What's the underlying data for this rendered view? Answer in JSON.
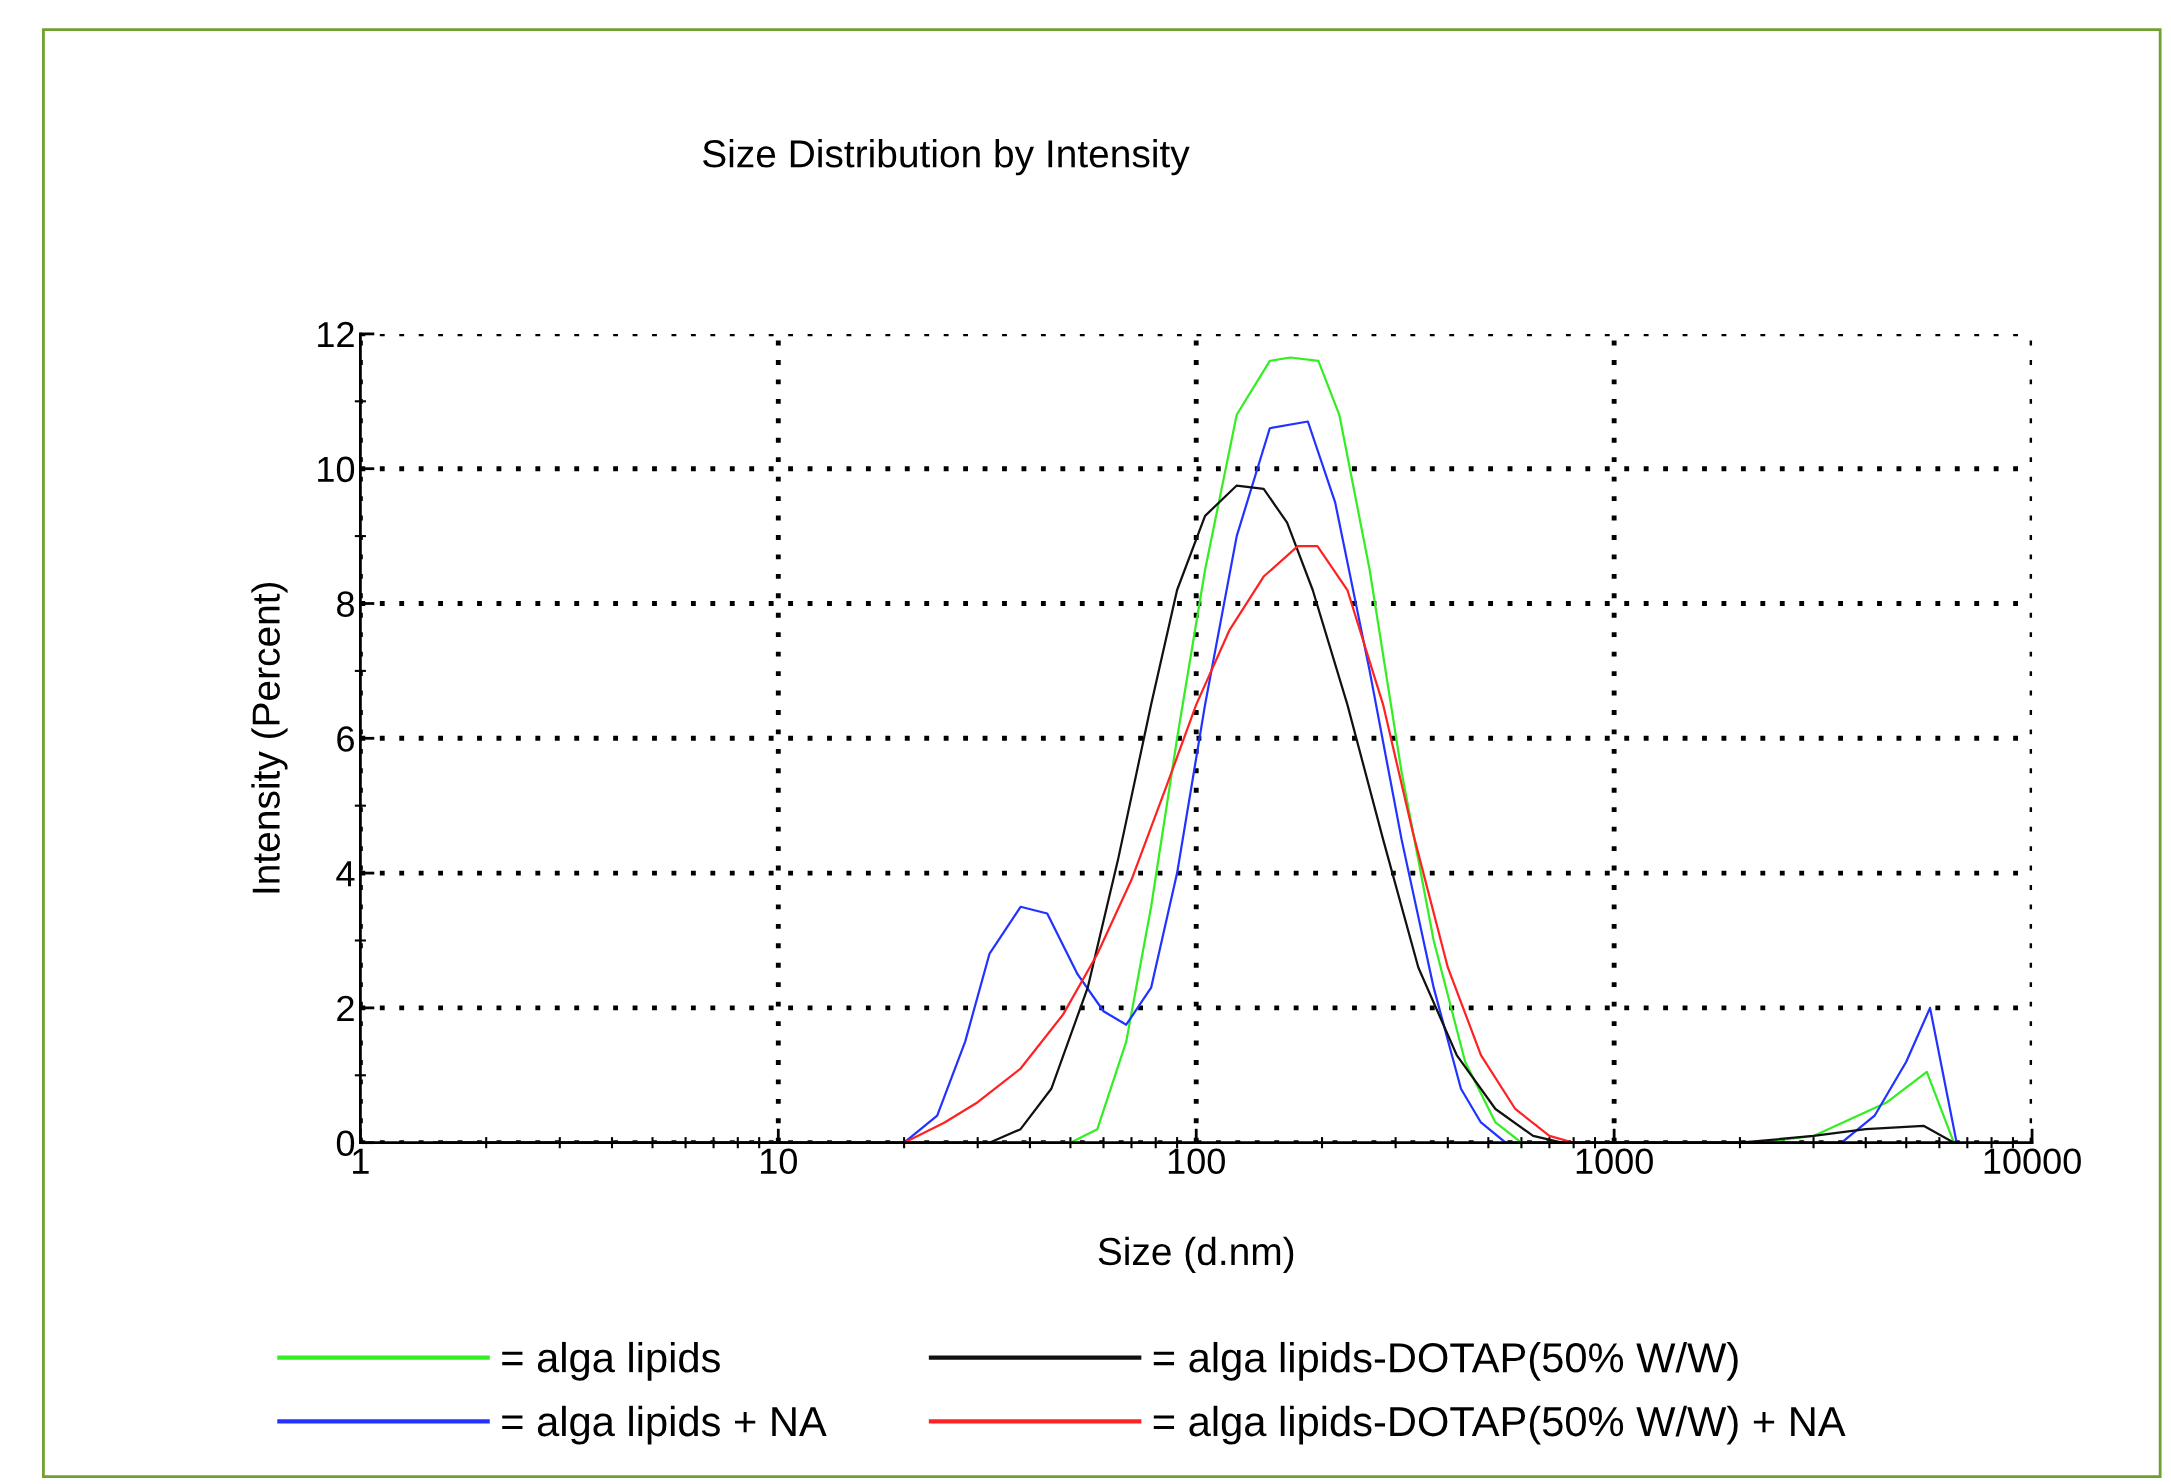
{
  "chart_data": {
    "type": "line",
    "title": "Size Distribution by Intensity",
    "xlabel": "Size (d.nm)",
    "ylabel": "Intensity (Percent)",
    "log": "x",
    "xlim": [
      1,
      10000
    ],
    "xticks": [
      1,
      10,
      100,
      1000,
      10000
    ],
    "ylim": [
      0,
      12
    ],
    "yticks": [
      0,
      2,
      4,
      6,
      8,
      10,
      12
    ],
    "grid": true,
    "legend": "bottom",
    "marker": "none",
    "line_style": "solid",
    "series": [
      {
        "name": "= alga lipids",
        "color": "#33ee22",
        "x": [
          1.5,
          50,
          58,
          68,
          78,
          90,
          105,
          125,
          150,
          168,
          196,
          220,
          260,
          310,
          370,
          440,
          520,
          600,
          2200,
          3000,
          4500,
          5600,
          6500
        ],
        "values": [
          0,
          0,
          0.2,
          1.5,
          3.5,
          6,
          8.5,
          10.8,
          11.6,
          11.65,
          11.6,
          10.8,
          8.5,
          5.5,
          3,
          1.2,
          0.3,
          0,
          0,
          0.1,
          0.6,
          1.05,
          0
        ]
      },
      {
        "name": "= alga lipids + NA",
        "color": "#2233ff",
        "x": [
          1.5,
          20,
          24,
          28,
          32,
          38,
          44,
          52,
          60,
          68,
          78,
          90,
          105,
          125,
          150,
          185,
          215,
          260,
          310,
          370,
          430,
          480,
          550,
          3500,
          4200,
          5000,
          5700,
          6600
        ],
        "values": [
          0,
          0,
          0.4,
          1.5,
          2.8,
          3.5,
          3.4,
          2.5,
          1.95,
          1.75,
          2.3,
          4,
          6.5,
          9,
          10.6,
          10.7,
          9.5,
          7,
          4.5,
          2.3,
          0.8,
          0.3,
          0,
          0,
          0.4,
          1.2,
          2,
          0
        ]
      },
      {
        "name": "= alga lipids-DOTAP(50% W/W)",
        "color": "#111111",
        "x": [
          1.5,
          32,
          38,
          45,
          55,
          65,
          78,
          90,
          105,
          125,
          145,
          165,
          190,
          230,
          280,
          340,
          420,
          520,
          640,
          750,
          2000,
          3000,
          4000,
          5500,
          6500
        ],
        "values": [
          0,
          0,
          0.2,
          0.8,
          2.3,
          4.2,
          6.5,
          8.2,
          9.3,
          9.75,
          9.7,
          9.2,
          8.2,
          6.5,
          4.5,
          2.6,
          1.3,
          0.5,
          0.1,
          0,
          0,
          0.1,
          0.2,
          0.25,
          0
        ]
      },
      {
        "name": "= alga lipids-DOTAP(50% W/W) + NA",
        "color": "#ff2222",
        "x": [
          20,
          25,
          30,
          38,
          48,
          58,
          70,
          85,
          100,
          120,
          145,
          175,
          195,
          230,
          280,
          330,
          400,
          480,
          580,
          700,
          800
        ],
        "values": [
          0,
          0.3,
          0.6,
          1.1,
          1.9,
          2.8,
          3.9,
          5.3,
          6.5,
          7.6,
          8.4,
          8.85,
          8.85,
          8.2,
          6.5,
          4.6,
          2.6,
          1.3,
          0.5,
          0.1,
          0
        ]
      }
    ]
  }
}
